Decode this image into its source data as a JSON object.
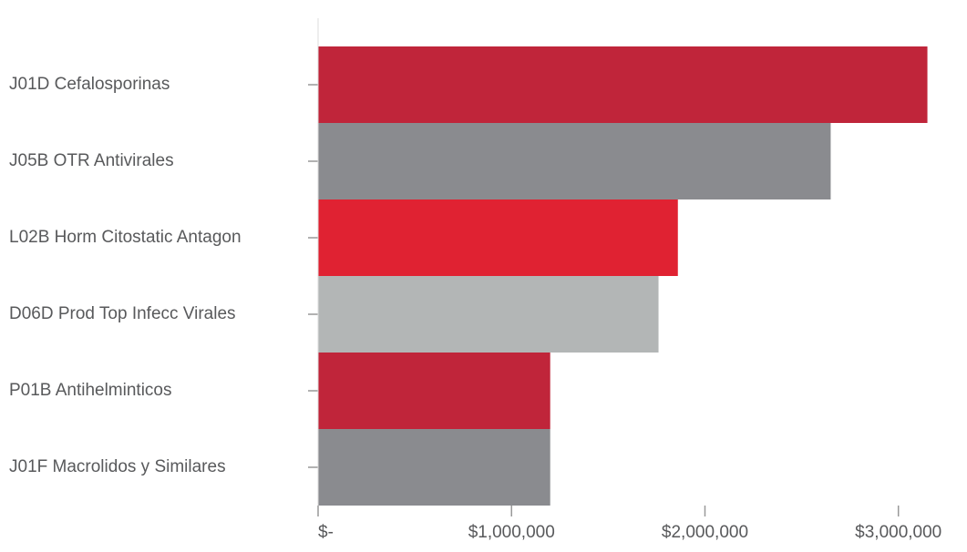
{
  "chart_data": {
    "type": "barh",
    "categories": [
      "J01D Cefalosporinas",
      "J05B OTR Antivirales",
      "L02B Horm Citostatic Antagon",
      "D06D Prod Top Infecc Virales",
      "P01B Antihelminticos",
      "J01F Macrolidos y Similares"
    ],
    "values": [
      3150000,
      2650000,
      1860000,
      1760000,
      1200000,
      1200000
    ],
    "colors": [
      "#c0253a",
      "#8a8b8f",
      "#e02232",
      "#b3b6b6",
      "#c0253a",
      "#8a8b8f"
    ],
    "xlim": [
      0,
      3350000
    ],
    "xticks": [
      {
        "value": 0,
        "label": "$-"
      },
      {
        "value": 1000000,
        "label": "$1,000,000"
      },
      {
        "value": 2000000,
        "label": "$2,000,000"
      },
      {
        "value": 3000000,
        "label": "$3,000,000"
      }
    ]
  }
}
